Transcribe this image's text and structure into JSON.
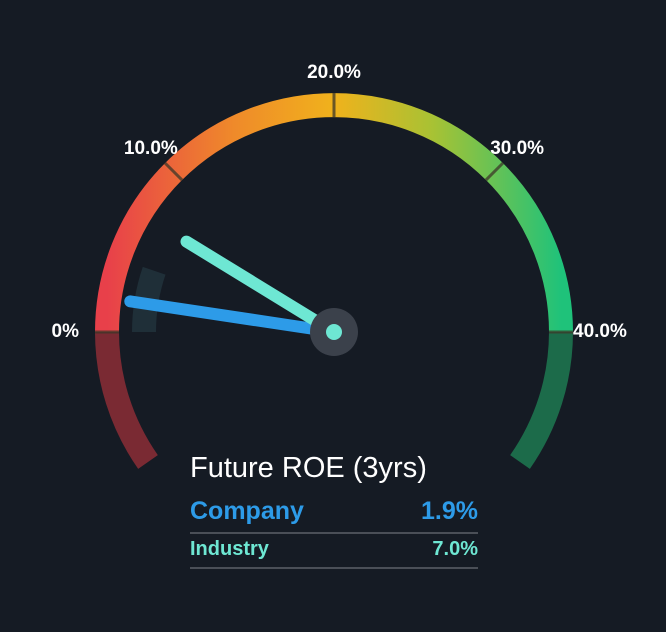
{
  "chart_data": {
    "type": "gauge",
    "title": "Future ROE (3yrs)",
    "range": [
      0,
      40
    ],
    "ticks": [
      {
        "value": 0,
        "label": "0%"
      },
      {
        "value": 10,
        "label": "10.0%"
      },
      {
        "value": 20,
        "label": "20.0%"
      },
      {
        "value": 30,
        "label": "30.0%"
      },
      {
        "value": 40,
        "label": "40.0%"
      }
    ],
    "series": [
      {
        "name": "Company",
        "value": 1.9,
        "display": "1.9%",
        "color": "#2d9be8"
      },
      {
        "name": "Industry",
        "value": 7.0,
        "display": "7.0%",
        "color": "#6ee7d3"
      }
    ],
    "colors": {
      "low": "#e8404a",
      "mid": "#f0b21c",
      "high": "#1fc27a",
      "low_band": "#7a2a33",
      "high_band": "#1c6b4a",
      "background": "#151b24"
    }
  }
}
